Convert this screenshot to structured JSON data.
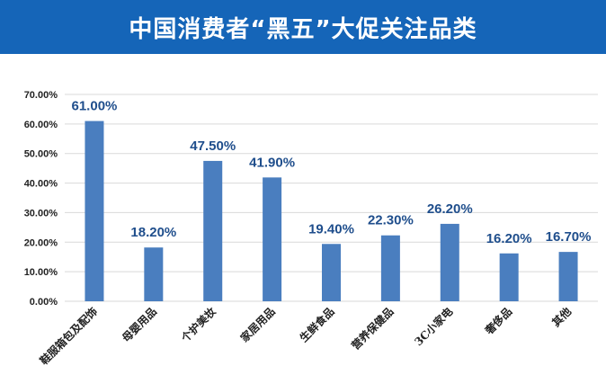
{
  "colors": {
    "banner": "#1565b8",
    "bar": "#4a7ebf",
    "data_label": "#1f4e8c",
    "grid": "#d9d9d9"
  },
  "chart_data": {
    "type": "bar",
    "title": "中国消费者“黑五”大促关注品类",
    "categories": [
      "鞋服箱包及配饰",
      "母婴用品",
      "个护美妆",
      "家居用品",
      "生鲜食品",
      "营养保健品",
      "3C小家电",
      "奢侈品",
      "其他"
    ],
    "values": [
      61.0,
      18.2,
      47.5,
      41.9,
      19.4,
      22.3,
      26.2,
      16.2,
      16.7
    ],
    "value_labels": [
      "61.00%",
      "18.20%",
      "47.50%",
      "41.90%",
      "19.40%",
      "22.30%",
      "26.20%",
      "16.20%",
      "16.70%"
    ],
    "yticks": [
      0,
      10,
      20,
      30,
      40,
      50,
      60,
      70
    ],
    "ytick_labels": [
      "0.00%",
      "10.00%",
      "20.00%",
      "30.00%",
      "40.00%",
      "50.00%",
      "60.00%",
      "70.00%"
    ],
    "ylim": [
      0,
      70
    ],
    "grid": true,
    "legend": "none"
  }
}
